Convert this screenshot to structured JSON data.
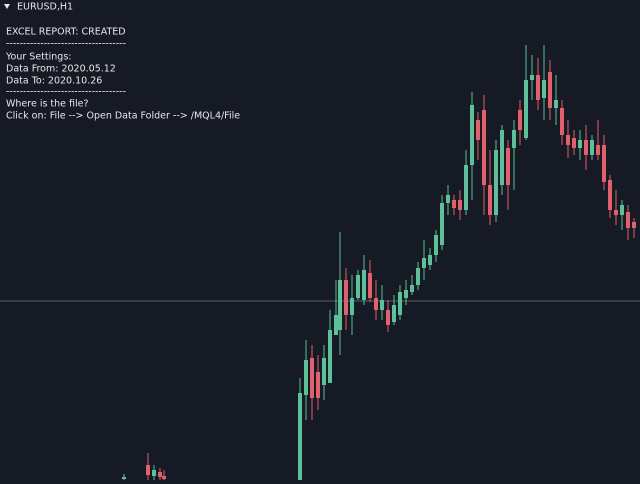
{
  "header": {
    "symbol": "EURUSD,H1"
  },
  "panel": {
    "lines": [
      "EXCEL REPORT: CREATED",
      "-----------------------------------",
      "Your Settings:",
      "Data From: 2020.05.12",
      "Data To: 2020.10.26",
      "-----------------------------------",
      "Where is the file?",
      "Click on: File --> Open Data Folder --> /MQL4/File"
    ]
  }
}
